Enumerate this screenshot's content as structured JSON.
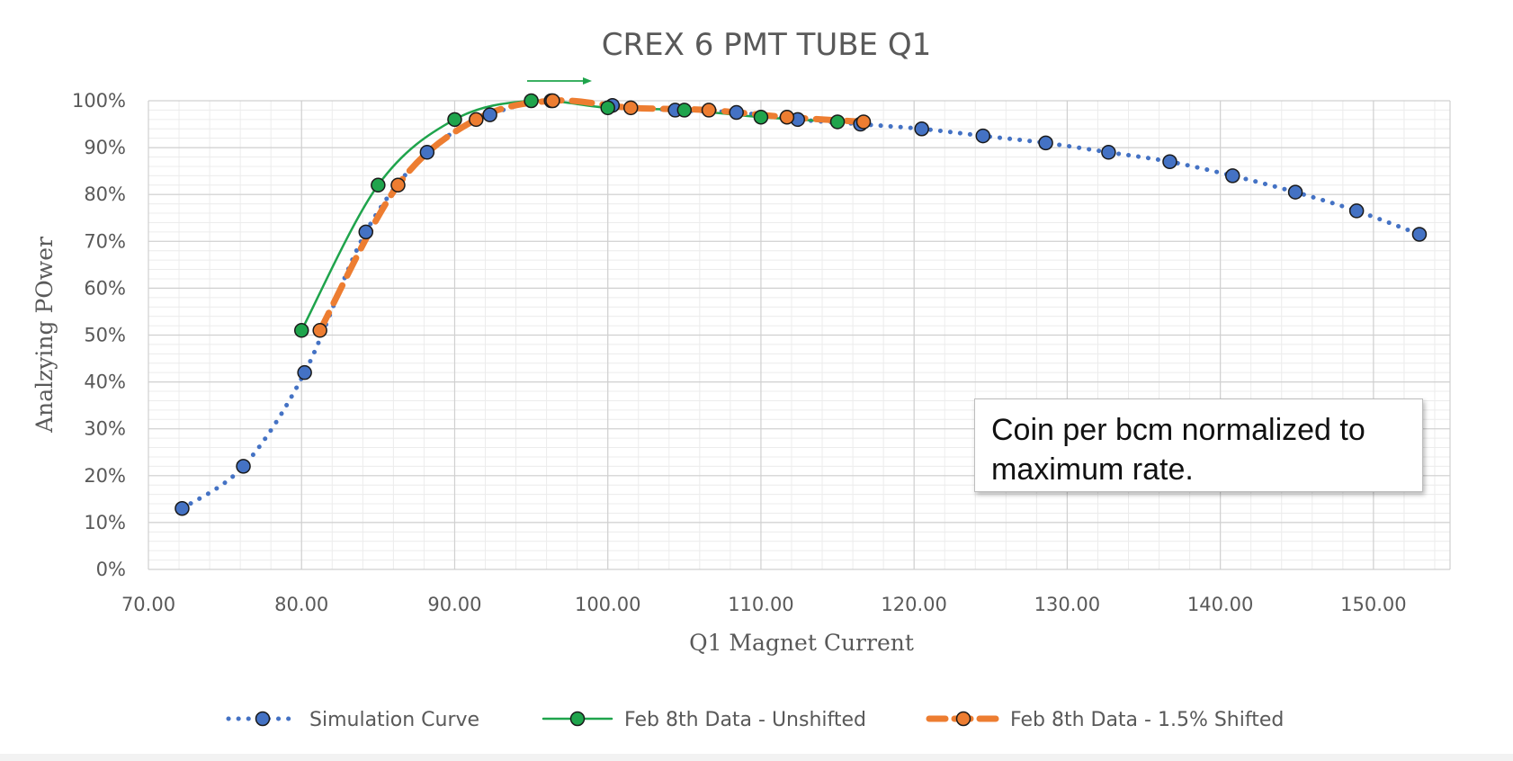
{
  "chart_data": {
    "type": "line",
    "title": "CREX 6 PMT TUBE Q1",
    "xlabel": "Q1 Magnet Current",
    "ylabel": "Analzying POwer",
    "xlim": [
      70,
      155
    ],
    "ylim": [
      0,
      100
    ],
    "x_ticks": [
      70,
      80,
      90,
      100,
      110,
      120,
      130,
      140,
      150
    ],
    "x_tick_labels": [
      "70.00",
      "80.00",
      "90.00",
      "100.00",
      "110.00",
      "120.00",
      "130.00",
      "140.00",
      "150.00"
    ],
    "y_ticks": [
      0,
      10,
      20,
      30,
      40,
      50,
      60,
      70,
      80,
      90,
      100
    ],
    "y_tick_labels": [
      "0%",
      "10%",
      "20%",
      "30%",
      "40%",
      "50%",
      "60%",
      "70%",
      "80%",
      "90%",
      "100%"
    ],
    "grid": true,
    "legend_position": "bottom",
    "series": [
      {
        "name": "Simulation Curve",
        "color": "#4472c4",
        "line_style": "dotted",
        "x": [
          72.2,
          76.2,
          80.2,
          84.2,
          88.2,
          92.3,
          96.3,
          100.3,
          104.4,
          108.4,
          112.4,
          116.5,
          120.5,
          124.5,
          128.6,
          132.7,
          136.7,
          140.8,
          144.9,
          148.9,
          153.0
        ],
        "y": [
          13,
          22,
          42,
          72,
          89,
          97,
          100,
          99,
          98,
          97.5,
          96,
          95,
          94,
          92.5,
          91,
          89,
          87,
          84,
          80.5,
          76.5,
          71.5
        ]
      },
      {
        "name": "Feb 8th Data - Unshifted",
        "color": "#1fa44c",
        "line_style": "solid",
        "x": [
          80.0,
          85.0,
          90.0,
          95.0,
          100.0,
          105.0,
          110.0,
          115.0
        ],
        "y": [
          51,
          82,
          96,
          100,
          98.5,
          98,
          96.5,
          95.5
        ]
      },
      {
        "name": "Feb 8th Data - 1.5% Shifted",
        "color": "#ed7d31",
        "line_style": "dashed",
        "x": [
          81.2,
          86.3,
          91.4,
          96.4,
          101.5,
          106.6,
          111.7,
          116.7
        ],
        "y": [
          51,
          82,
          96,
          100,
          98.5,
          98,
          96.5,
          95.5
        ]
      }
    ],
    "annotation": "Coin per bcm normalized to maximum rate."
  }
}
